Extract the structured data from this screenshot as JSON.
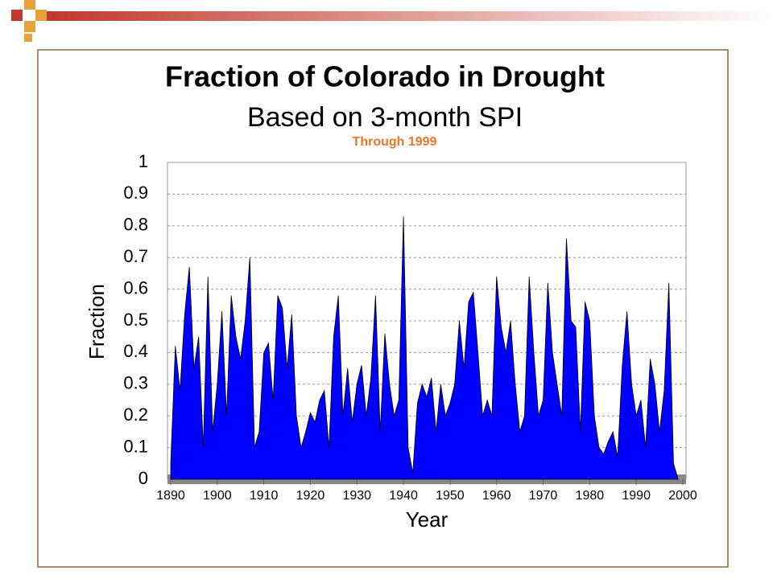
{
  "chart_data": {
    "type": "area",
    "title": "Fraction of Colorado in Drought",
    "subtitle": "Based on 3-month SPI",
    "annotation": "Through 1999",
    "x_label": "Year",
    "y_label": "Fraction",
    "color": "#0000ff",
    "grid": true,
    "xlim": [
      1890,
      2000
    ],
    "xticks": [
      1890,
      1900,
      1910,
      1920,
      1930,
      1940,
      1950,
      1960,
      1970,
      1980,
      1990,
      2000
    ],
    "ylim": [
      0,
      1
    ],
    "yticks": [
      0,
      0.1,
      0.2,
      0.3,
      0.4,
      0.5,
      0.6,
      0.7,
      0.8,
      0.9,
      1
    ],
    "x": [
      1890,
      1891,
      1892,
      1893,
      1894,
      1895,
      1896,
      1897,
      1898,
      1899,
      1900,
      1901,
      1902,
      1903,
      1904,
      1905,
      1906,
      1907,
      1908,
      1909,
      1910,
      1911,
      1912,
      1913,
      1914,
      1915,
      1916,
      1917,
      1918,
      1919,
      1920,
      1921,
      1922,
      1923,
      1924,
      1925,
      1926,
      1927,
      1928,
      1929,
      1930,
      1931,
      1932,
      1933,
      1934,
      1935,
      1936,
      1937,
      1938,
      1939,
      1940,
      1941,
      1942,
      1943,
      1944,
      1945,
      1946,
      1947,
      1948,
      1949,
      1950,
      1951,
      1952,
      1953,
      1954,
      1955,
      1956,
      1957,
      1958,
      1959,
      1960,
      1961,
      1962,
      1963,
      1964,
      1965,
      1966,
      1967,
      1968,
      1969,
      1970,
      1971,
      1972,
      1973,
      1974,
      1975,
      1976,
      1977,
      1978,
      1979,
      1980,
      1981,
      1982,
      1983,
      1984,
      1985,
      1986,
      1987,
      1988,
      1989,
      1990,
      1991,
      1992,
      1993,
      1994,
      1995,
      1996,
      1997,
      1998,
      1999
    ],
    "values": [
      0.05,
      0.42,
      0.28,
      0.52,
      0.67,
      0.35,
      0.45,
      0.1,
      0.64,
      0.15,
      0.3,
      0.53,
      0.2,
      0.58,
      0.45,
      0.38,
      0.5,
      0.7,
      0.1,
      0.15,
      0.4,
      0.43,
      0.25,
      0.58,
      0.54,
      0.35,
      0.52,
      0.2,
      0.1,
      0.15,
      0.21,
      0.18,
      0.25,
      0.28,
      0.1,
      0.45,
      0.58,
      0.2,
      0.35,
      0.18,
      0.3,
      0.36,
      0.2,
      0.32,
      0.58,
      0.15,
      0.46,
      0.3,
      0.2,
      0.25,
      0.83,
      0.1,
      0.02,
      0.24,
      0.3,
      0.26,
      0.32,
      0.15,
      0.3,
      0.2,
      0.24,
      0.3,
      0.5,
      0.35,
      0.56,
      0.59,
      0.4,
      0.2,
      0.25,
      0.2,
      0.64,
      0.48,
      0.4,
      0.5,
      0.3,
      0.15,
      0.2,
      0.64,
      0.4,
      0.2,
      0.25,
      0.62,
      0.4,
      0.3,
      0.2,
      0.76,
      0.5,
      0.48,
      0.15,
      0.56,
      0.5,
      0.2,
      0.1,
      0.08,
      0.12,
      0.15,
      0.07,
      0.36,
      0.53,
      0.3,
      0.2,
      0.25,
      0.1,
      0.38,
      0.3,
      0.15,
      0.28,
      0.62,
      0.05,
      0
    ]
  }
}
